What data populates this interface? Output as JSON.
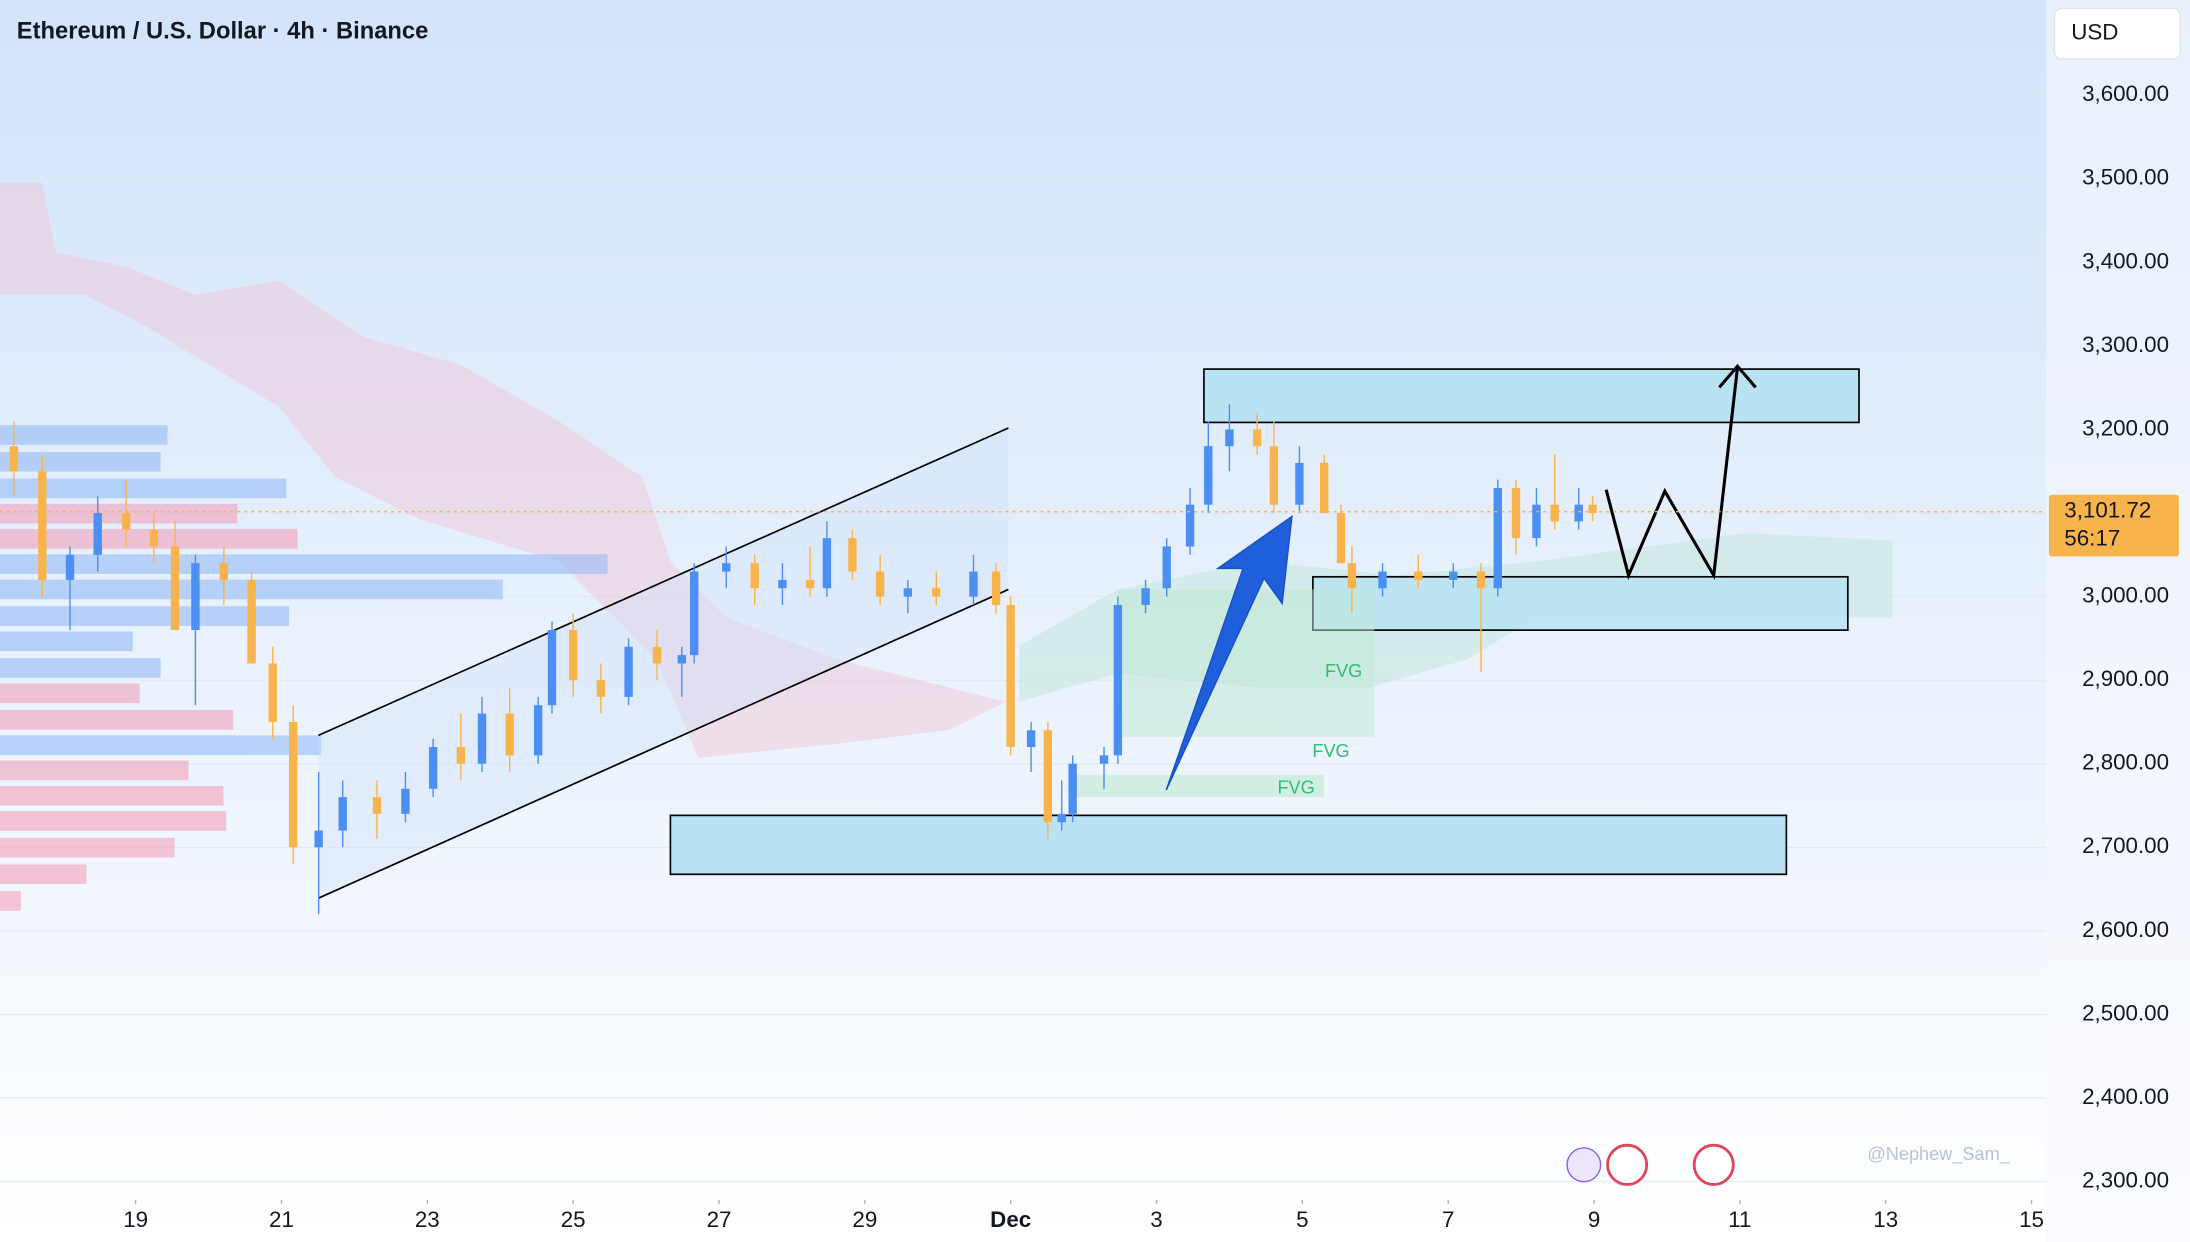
{
  "chart_data": {
    "type": "candlestick",
    "title": "Ethereum / U.S. Dollar · 4h · Binance",
    "currency": "USD",
    "x": [
      -1.67,
      -1.28,
      -0.9,
      -0.52,
      -0.13,
      0.25,
      0.54,
      0.82,
      1.21,
      1.59,
      1.88,
      2.16,
      2.51,
      2.84,
      3.31,
      3.7,
      4.08,
      4.46,
      4.75,
      5.13,
      5.52,
      5.71,
      6.0,
      6.38,
      6.76,
      7.15,
      7.49,
      7.66,
      8.1,
      8.49,
      8.87,
      9.25,
      9.48,
      9.83,
      10.21,
      10.59,
      10.98,
      11.49,
      11.8,
      12.0,
      12.28,
      12.51,
      12.7,
      12.85,
      13.28,
      13.47,
      13.85,
      14.14,
      14.46,
      14.71,
      15.0,
      15.38,
      15.61,
      15.96,
      16.3,
      16.53,
      16.68,
      17.1,
      17.59,
      18.07,
      18.45,
      18.68,
      18.93,
      19.21,
      19.46,
      19.79,
      19.98
    ],
    "open": [
      3180,
      3150,
      3020,
      3050,
      3100,
      3080,
      3060,
      2960,
      3040,
      3020,
      2920,
      2850,
      2700,
      2720,
      2760,
      2740,
      2770,
      2820,
      2800,
      2860,
      2810,
      2870,
      2960,
      2900,
      2880,
      2940,
      2920,
      2930,
      3030,
      3040,
      3010,
      3020,
      3010,
      3070,
      3030,
      3000,
      3010,
      3000,
      3030,
      2990,
      2820,
      2840,
      2730,
      2740,
      2800,
      2810,
      2990,
      3010,
      3060,
      3110,
      3180,
      3200,
      3180,
      3110,
      3160,
      3100,
      3040,
      3010,
      3030,
      3020,
      3030,
      3010,
      3130,
      3070,
      3110,
      3090,
      3110
    ],
    "high": [
      3210,
      3170,
      3060,
      3120,
      3140,
      3100,
      3090,
      3050,
      3060,
      3030,
      2940,
      2870,
      2790,
      2780,
      2780,
      2790,
      2830,
      2860,
      2880,
      2890,
      2880,
      2970,
      2980,
      2920,
      2950,
      2960,
      2940,
      3040,
      3060,
      3050,
      3040,
      3060,
      3090,
      3080,
      3050,
      3020,
      3030,
      3050,
      3040,
      3000,
      2850,
      2850,
      2780,
      2810,
      2820,
      3000,
      3020,
      3070,
      3130,
      3210,
      3230,
      3220,
      3210,
      3180,
      3170,
      3110,
      3060,
      3040,
      3050,
      3040,
      3040,
      3140,
      3140,
      3130,
      3170,
      3130,
      3120
    ],
    "low": [
      3120,
      3000,
      2960,
      3030,
      3060,
      3040,
      2960,
      2870,
      2990,
      2920,
      2830,
      2680,
      2620,
      2700,
      2710,
      2730,
      2760,
      2780,
      2790,
      2790,
      2800,
      2860,
      2880,
      2860,
      2870,
      2900,
      2880,
      2920,
      3010,
      2990,
      2990,
      3000,
      3000,
      3020,
      2990,
      2980,
      2990,
      2990,
      2980,
      2810,
      2790,
      2710,
      2720,
      2730,
      2770,
      2800,
      2980,
      3000,
      3050,
      3100,
      3150,
      3170,
      3100,
      3100,
      3100,
      3040,
      2980,
      3000,
      3010,
      3010,
      2910,
      3000,
      3050,
      3060,
      3080,
      3080,
      3090
    ],
    "close": [
      3150,
      3020,
      3050,
      3100,
      3080,
      3060,
      2960,
      3040,
      3020,
      2920,
      2850,
      2700,
      2720,
      2760,
      2740,
      2770,
      2820,
      2800,
      2860,
      2810,
      2870,
      2960,
      2900,
      2880,
      2940,
      2920,
      2930,
      3030,
      3040,
      3010,
      3020,
      3010,
      3070,
      3030,
      3000,
      3010,
      3000,
      3030,
      2990,
      2820,
      2840,
      2730,
      2740,
      2800,
      2810,
      2990,
      3010,
      3060,
      3110,
      3180,
      3200,
      3180,
      3110,
      3160,
      3100,
      3040,
      3010,
      3030,
      3020,
      3030,
      3010,
      3130,
      3070,
      3110,
      3090,
      3110,
      3100
    ],
    "up_color": "#4c8ff2",
    "down_color": "#f8b44c",
    "xlim": [
      -1.86,
      26.2
    ],
    "xticks": [
      {
        "value": 0,
        "label": "19"
      },
      {
        "value": 2,
        "label": "21"
      },
      {
        "value": 4,
        "label": "23"
      },
      {
        "value": 6,
        "label": "25"
      },
      {
        "value": 8,
        "label": "27"
      },
      {
        "value": 10,
        "label": "29"
      },
      {
        "value": 12,
        "label": "Dec"
      },
      {
        "value": 14,
        "label": "3"
      },
      {
        "value": 16,
        "label": "5"
      },
      {
        "value": 18,
        "label": "7"
      },
      {
        "value": 20,
        "label": "9"
      },
      {
        "value": 22,
        "label": "11"
      },
      {
        "value": 24,
        "label": "13"
      },
      {
        "value": 26,
        "label": "15"
      }
    ],
    "ylim": [
      2278,
      3714
    ],
    "yticks": [
      {
        "value": 2300,
        "label": "2,300.00"
      },
      {
        "value": 2400,
        "label": "2,400.00"
      },
      {
        "value": 2500,
        "label": "2,500.00"
      },
      {
        "value": 2600,
        "label": "2,600.00"
      },
      {
        "value": 2700,
        "label": "2,700.00"
      },
      {
        "value": 2800,
        "label": "2,800.00"
      },
      {
        "value": 2900,
        "label": "2,900.00"
      },
      {
        "value": 3000,
        "label": "3,000.00"
      },
      {
        "value": 3100,
        "label": "3,100.00"
      },
      {
        "value": 3200,
        "label": "3,200.00"
      },
      {
        "value": 3300,
        "label": "3,300.00"
      },
      {
        "value": 3400,
        "label": "3,400.00"
      },
      {
        "value": 3500,
        "label": "3,500.00"
      },
      {
        "value": 3600,
        "label": "3,600.00"
      }
    ],
    "last_price": {
      "value": 3101.72,
      "label": "3,101.72",
      "countdown": "56:17"
    },
    "annotations": [
      "FVG",
      "FVG",
      "FVG"
    ],
    "watermark": "@Nephew_Sam_"
  }
}
